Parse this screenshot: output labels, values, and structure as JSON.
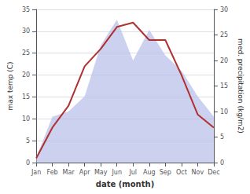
{
  "chart_data": {
    "type": "line",
    "categories": [
      "Jan",
      "Feb",
      "Mar",
      "Apr",
      "May",
      "Jun",
      "Jul",
      "Aug",
      "Sep",
      "Oct",
      "Nov",
      "Dec"
    ],
    "series": [
      {
        "type": "area",
        "color": "#b0b8e8",
        "axis": "y2",
        "values": [
          1,
          9,
          10,
          13,
          23,
          28,
          20,
          26,
          21,
          18,
          13,
          9
        ]
      },
      {
        "type": "line",
        "color": "#b03030",
        "values": [
          1,
          8,
          13,
          22,
          26,
          31,
          32,
          28,
          28,
          20,
          11,
          8
        ]
      }
    ],
    "xlabel": "date (month)",
    "ylabel": "max temp (C)",
    "y2label": "med. precipitation (kg/m2)",
    "ylim": [
      0,
      35
    ],
    "yticks": [
      0,
      5,
      10,
      15,
      20,
      25,
      30,
      35
    ],
    "y2lim": [
      0,
      30
    ],
    "y2ticks": [
      0,
      5,
      10,
      15,
      20,
      25,
      30
    ],
    "grid": true
  }
}
